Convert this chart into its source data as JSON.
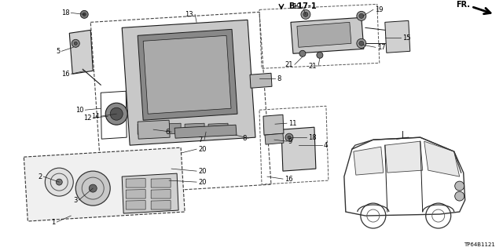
{
  "bg_color": "#ffffff",
  "diagram_id": "TP64B1121",
  "line_color": "#1a1a1a",
  "label_color": "#000000"
}
